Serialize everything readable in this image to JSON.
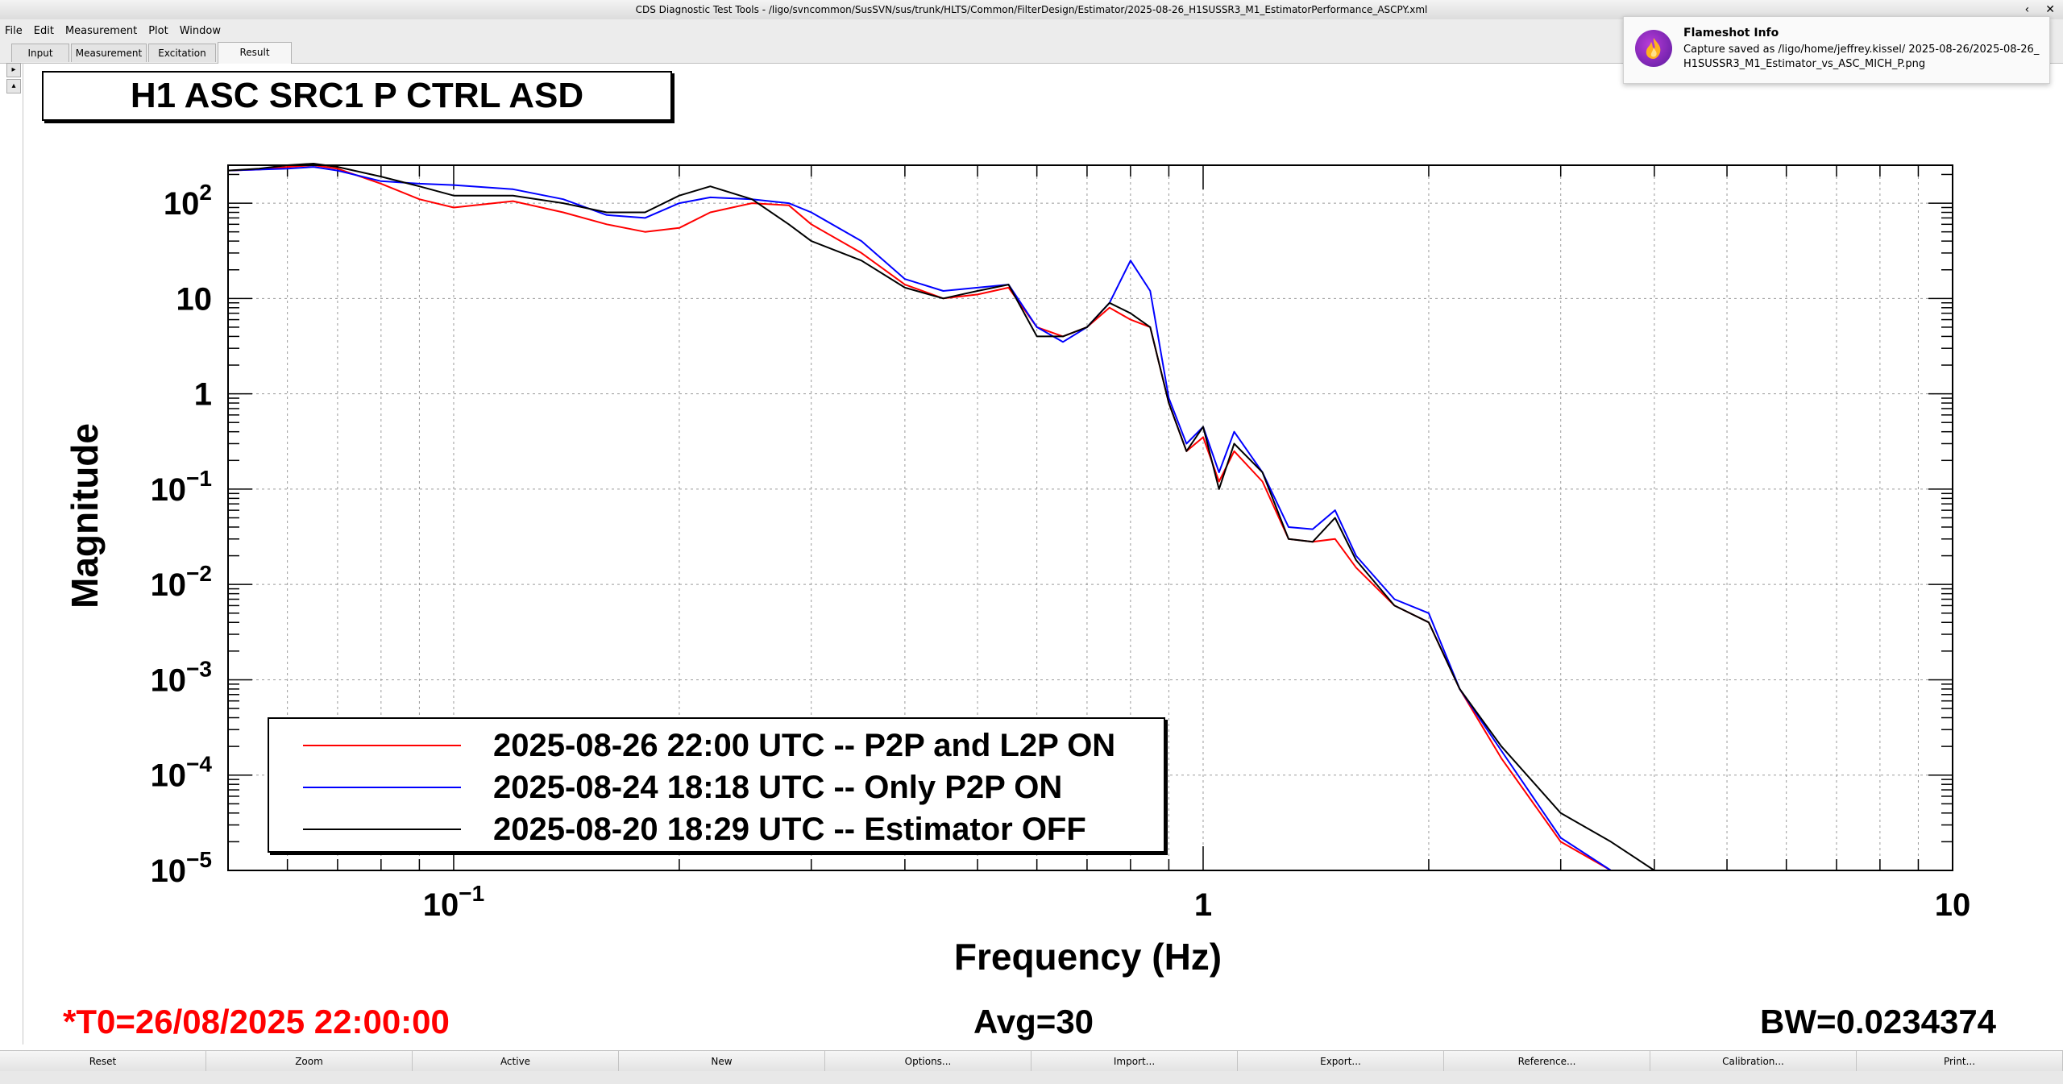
{
  "window": {
    "title": "CDS Diagnostic Test Tools - /ligo/svncommon/SusSVN/sus/trunk/HLTS/Common/FilterDesign/Estimator/2025-08-26_H1SUSSR3_M1_EstimatorPerformance_ASCPY.xml",
    "controls": [
      "‹",
      "✕"
    ]
  },
  "menu": [
    "File",
    "Edit",
    "Measurement",
    "Plot",
    "Window"
  ],
  "tabs": [
    {
      "label": "Input",
      "active": false
    },
    {
      "label": "Measurement",
      "active": false
    },
    {
      "label": "Excitation",
      "active": false
    },
    {
      "label": "Result",
      "active": true
    }
  ],
  "plot": {
    "title": "H1 ASC SRC1 P CTRL ASD",
    "t0": "*T0=26/08/2025 22:00:00",
    "avg": "Avg=30",
    "bw": "BW=0.0234374",
    "colors": {
      "t0": "#ff0000"
    }
  },
  "notification": {
    "title": "Flameshot Info",
    "body": "Capture saved as /ligo/home/jeffrey.kissel/ 2025-08-26/2025-08-26_H1SUSSR3_M1_Estimator_vs_ASC_MICH_P.png",
    "icon": "flameshot-icon"
  },
  "bottom_buttons": [
    "Reset",
    "Zoom",
    "Active",
    "New",
    "Options...",
    "Import...",
    "Export...",
    "Reference...",
    "Calibration...",
    "Print..."
  ],
  "chart_data": {
    "type": "line",
    "title": "H1 ASC SRC1 P CTRL ASD",
    "xlabel": "Frequency (Hz)",
    "ylabel": "Magnitude",
    "x_scale": "log",
    "y_scale": "log",
    "xlim": [
      0.05,
      10
    ],
    "ylim": [
      1e-05,
      250
    ],
    "grid": true,
    "legend_position": "bottom-left",
    "x_ticks": [
      {
        "value": 0.1,
        "base": "10",
        "exp": "−1"
      },
      {
        "value": 1,
        "base": "1",
        "exp": ""
      },
      {
        "value": 10,
        "base": "10",
        "exp": ""
      }
    ],
    "y_ticks": [
      {
        "value": 100,
        "base": "10",
        "exp": "2"
      },
      {
        "value": 10,
        "base": "10",
        "exp": ""
      },
      {
        "value": 1,
        "base": "1",
        "exp": ""
      },
      {
        "value": 0.1,
        "base": "10",
        "exp": "−1"
      },
      {
        "value": 0.01,
        "base": "10",
        "exp": "−2"
      },
      {
        "value": 0.001,
        "base": "10",
        "exp": "−3"
      },
      {
        "value": 0.0001,
        "base": "10",
        "exp": "−4"
      },
      {
        "value": 1e-05,
        "base": "10",
        "exp": "−5"
      }
    ],
    "series": [
      {
        "name": "2025-08-26 22:00 UTC -- P2P and L2P ON",
        "color": "#ff0000",
        "x": [
          0.05,
          0.055,
          0.06,
          0.065,
          0.07,
          0.08,
          0.09,
          0.1,
          0.12,
          0.14,
          0.16,
          0.18,
          0.2,
          0.22,
          0.25,
          0.28,
          0.3,
          0.35,
          0.4,
          0.45,
          0.5,
          0.55,
          0.6,
          0.65,
          0.7,
          0.75,
          0.8,
          0.85,
          0.9,
          0.95,
          1.0,
          1.05,
          1.1,
          1.2,
          1.3,
          1.4,
          1.5,
          1.6,
          1.8,
          2.0,
          2.2,
          2.5,
          3.0,
          3.5
        ],
        "y": [
          220,
          225,
          240,
          250,
          230,
          160,
          110,
          90,
          105,
          80,
          60,
          50,
          55,
          80,
          100,
          95,
          60,
          30,
          14,
          10,
          11,
          13,
          5,
          4,
          5,
          8,
          6,
          5,
          0.8,
          0.25,
          0.35,
          0.12,
          0.25,
          0.12,
          0.03,
          0.028,
          0.03,
          0.015,
          0.006,
          0.004,
          0.0008,
          0.00015,
          2e-05,
          1e-05
        ]
      },
      {
        "name": "2025-08-24 18:18 UTC -- Only P2P ON",
        "color": "#0000ff",
        "x": [
          0.05,
          0.055,
          0.06,
          0.065,
          0.07,
          0.08,
          0.09,
          0.1,
          0.12,
          0.14,
          0.16,
          0.18,
          0.2,
          0.22,
          0.25,
          0.28,
          0.3,
          0.35,
          0.4,
          0.45,
          0.5,
          0.55,
          0.6,
          0.65,
          0.7,
          0.75,
          0.8,
          0.85,
          0.9,
          0.95,
          1.0,
          1.05,
          1.1,
          1.2,
          1.3,
          1.4,
          1.5,
          1.6,
          1.8,
          2.0,
          2.2,
          2.5,
          3.0,
          3.5
        ],
        "y": [
          220,
          225,
          230,
          240,
          220,
          170,
          160,
          155,
          140,
          110,
          75,
          70,
          100,
          115,
          110,
          100,
          80,
          40,
          16,
          12,
          13,
          14,
          5,
          3.5,
          5,
          9,
          25,
          12,
          0.9,
          0.3,
          0.45,
          0.15,
          0.4,
          0.15,
          0.04,
          0.038,
          0.06,
          0.02,
          0.007,
          0.005,
          0.0008,
          0.00018,
          2.2e-05,
          1e-05
        ]
      },
      {
        "name": "2025-08-20 18:29 UTC -- Estimator OFF",
        "color": "#000000",
        "x": [
          0.05,
          0.055,
          0.06,
          0.065,
          0.07,
          0.08,
          0.09,
          0.1,
          0.12,
          0.14,
          0.16,
          0.18,
          0.2,
          0.22,
          0.25,
          0.28,
          0.3,
          0.35,
          0.4,
          0.45,
          0.5,
          0.55,
          0.6,
          0.65,
          0.7,
          0.75,
          0.8,
          0.85,
          0.9,
          0.95,
          1.0,
          1.05,
          1.1,
          1.2,
          1.3,
          1.4,
          1.5,
          1.6,
          1.8,
          2.0,
          2.2,
          2.5,
          3.0,
          3.5,
          4.0
        ],
        "y": [
          220,
          230,
          250,
          260,
          240,
          190,
          150,
          120,
          120,
          100,
          80,
          80,
          120,
          150,
          110,
          60,
          40,
          25,
          13,
          10,
          12,
          14,
          4,
          4,
          5,
          9,
          7,
          5,
          0.8,
          0.25,
          0.45,
          0.1,
          0.3,
          0.15,
          0.03,
          0.028,
          0.05,
          0.018,
          0.006,
          0.004,
          0.0008,
          0.0002,
          4e-05,
          2e-05,
          1e-05
        ]
      }
    ]
  }
}
